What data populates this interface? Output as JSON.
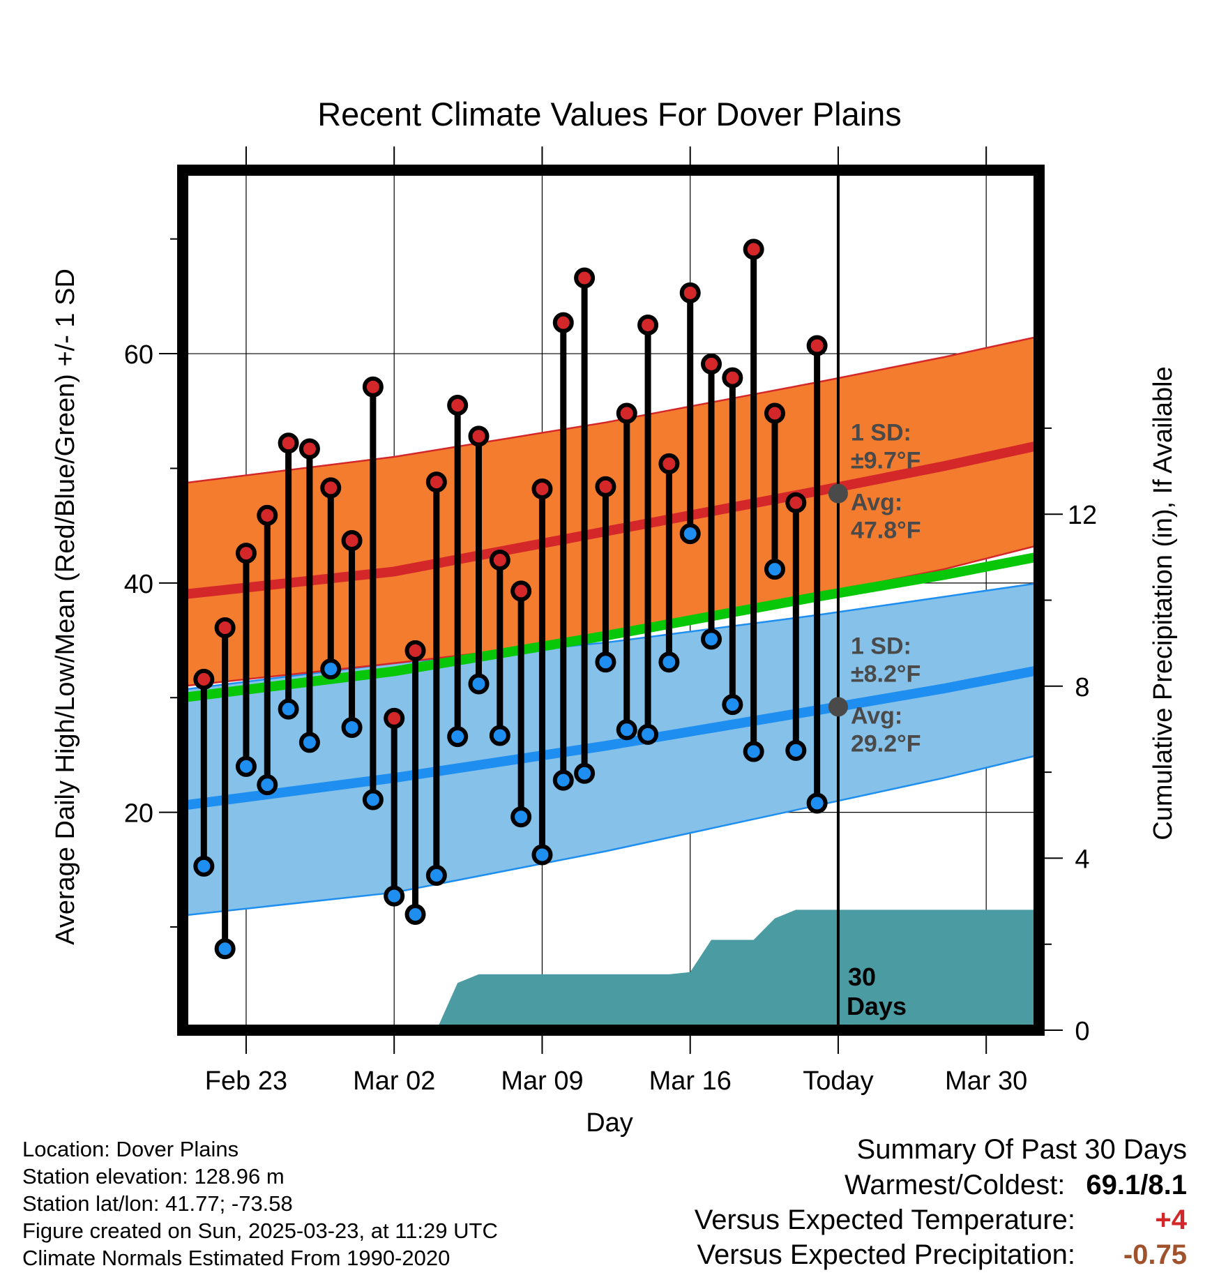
{
  "chart_data": {
    "type": "line",
    "title": "Recent Climate Values For Dover Plains",
    "xlabel": "Day",
    "ylabel": "Average Daily High/Low/Mean (Red/Blue/Green) +/- 1 SD",
    "ylabel_right": "Cumulative Precipitation (in), If Available",
    "x_tick_labels": [
      "Feb 23",
      "Mar 02",
      "Mar 09",
      "Mar 16",
      "Today",
      "Mar 30"
    ],
    "x_tick_days": [
      3,
      10,
      17,
      24,
      31,
      38
    ],
    "x_range_days": [
      0,
      40.5
    ],
    "y_ticks": [
      20,
      40,
      60
    ],
    "y_range": [
      1,
      76
    ],
    "y2_ticks": [
      0,
      4,
      8,
      12
    ],
    "y2_range": [
      0,
      20
    ],
    "today_day": 31,
    "days": [
      1,
      2,
      3,
      4,
      5,
      6,
      7,
      8,
      9,
      10,
      11,
      12,
      13,
      14,
      15,
      16,
      17,
      18,
      19,
      20,
      21,
      22,
      23,
      24,
      25,
      26,
      27,
      28,
      29,
      30
    ],
    "highs": [
      31.6,
      36.1,
      42.6,
      45.9,
      52.2,
      51.7,
      48.3,
      43.7,
      57.1,
      28.2,
      34.1,
      48.8,
      55.5,
      52.8,
      42,
      39.3,
      48.2,
      62.7,
      66.6,
      48.4,
      54.8,
      62.5,
      50.4,
      65.3,
      59.1,
      57.9,
      69.1,
      54.8,
      47,
      60.7
    ],
    "lows": [
      15.3,
      8.1,
      24,
      22.4,
      29,
      26.1,
      32.5,
      27.4,
      21.1,
      12.7,
      11.1,
      14.5,
      26.6,
      31.2,
      26.7,
      19.6,
      16.3,
      22.8,
      23.4,
      33.1,
      27.2,
      26.8,
      33.1,
      44.3,
      35.1,
      29.4,
      25.3,
      41.2,
      25.4,
      20.8
    ],
    "normal_high": {
      "days": [
        0,
        10,
        20,
        30,
        36,
        40.5
      ],
      "mean": [
        39,
        41,
        44.5,
        48,
        50.2,
        52
      ],
      "upper": [
        48.7,
        51,
        54,
        57.5,
        59.7,
        61.5
      ],
      "lower": [
        31,
        33,
        35.2,
        39,
        41.2,
        43.3
      ]
    },
    "normal_low": {
      "days": [
        0,
        10,
        20,
        30,
        36,
        40.5
      ],
      "mean": [
        20.6,
        23,
        25.8,
        28.9,
        30.8,
        32.4
      ],
      "upper": [
        30.7,
        33,
        34.8,
        37.2,
        38.8,
        40
      ],
      "lower": [
        11,
        13,
        16.6,
        20.6,
        23,
        25
      ]
    },
    "normal_mean": {
      "days": [
        0,
        10,
        20,
        30,
        36,
        40.5
      ],
      "mean": [
        30,
        32.3,
        35.4,
        38.8,
        40.7,
        42.3
      ]
    },
    "precip": {
      "days": [
        12,
        13,
        14,
        15,
        16,
        17,
        18,
        19,
        20,
        21,
        22,
        23,
        24,
        25,
        26,
        27,
        28,
        29,
        30,
        31,
        40.5
      ],
      "values": [
        0,
        1.1,
        1.3,
        1.3,
        1.3,
        1.3,
        1.3,
        1.3,
        1.3,
        1.3,
        1.3,
        1.3,
        1.35,
        2.1,
        2.1,
        2.1,
        2.6,
        2.8,
        2.8,
        2.8,
        2.8
      ]
    },
    "annotations": {
      "high_sd_label": "1 SD:",
      "high_sd_value": "±9.7°F",
      "high_avg_label": "Avg:",
      "high_avg_value": "47.8°F",
      "high_avg": 47.8,
      "low_sd_label": "1 SD:",
      "low_sd_value": "±8.2°F",
      "low_avg_label": "Avg:",
      "low_avg_value": "29.2°F",
      "low_avg": 29.2,
      "days_label_1": "30",
      "days_label_2": "Days"
    },
    "colors": {
      "high_band": "#f47c2e",
      "high_line": "#d4272a",
      "high_band_edge": "#d4272a",
      "low_band": "#85c1e8",
      "low_line": "#1e8ef0",
      "mean_line": "#08c708",
      "precip_fill": "#4a9ba2",
      "high_marker": "#d4272a",
      "low_marker": "#1e8ef0",
      "annotation_text": "#4a4a4a"
    }
  },
  "info": {
    "location": "Location: Dover Plains",
    "elevation": "Station elevation: 128.96 m",
    "latlon": "Station lat/lon: 41.77; -73.58",
    "created": "Figure created on Sun, 2025-03-23, at 11:29 UTC",
    "normals": "Climate Normals Estimated From 1990-2020"
  },
  "summary": {
    "title": "Summary Of Past 30 Days",
    "warmest_label": "Warmest/Coldest:",
    "warmest_value": "69.1/8.1",
    "temp_label": "Versus Expected Temperature:",
    "temp_value": "+4",
    "temp_color": "#d4272a",
    "precip_label": "Versus Expected Precipitation:",
    "precip_value": "-0.75",
    "precip_color": "#a0522d"
  }
}
